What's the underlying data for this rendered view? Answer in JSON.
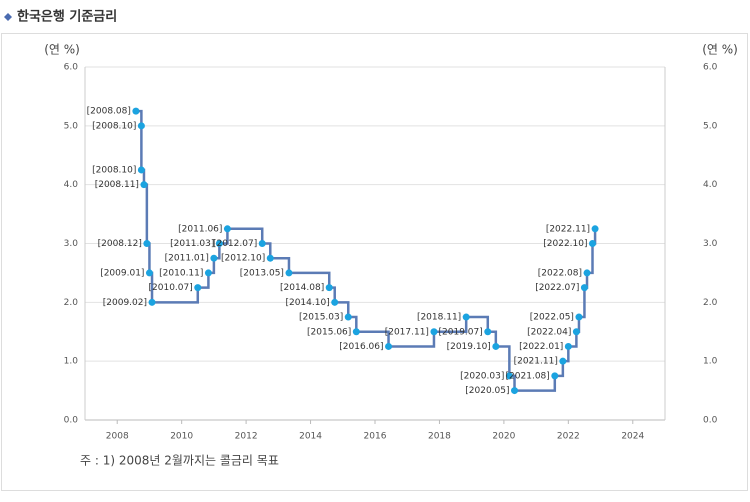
{
  "chart_data": {
    "type": "line",
    "step": "after",
    "title": "한국은행 기준금리",
    "y_label": "(연 %)",
    "y2_label": "(연 %)",
    "note": "주 : 1) 2008년 2월까지는 콜금리 목표",
    "xlim": [
      2007,
      2025
    ],
    "xticks": [
      2008,
      2010,
      2012,
      2014,
      2016,
      2018,
      2020,
      2022,
      2024
    ],
    "ylim": [
      0,
      6
    ],
    "yticks": [
      {
        "value": 0,
        "label": "0.0"
      },
      {
        "value": 1,
        "label": "1.0"
      },
      {
        "value": 2,
        "label": "2.0"
      },
      {
        "value": 3,
        "label": "3.0"
      },
      {
        "value": 4,
        "label": "4.0"
      },
      {
        "value": 5,
        "label": "5.0"
      },
      {
        "value": 6,
        "label": "6.0"
      }
    ],
    "y2lim": [
      0,
      6
    ],
    "y2ticks": [
      {
        "value": 0,
        "label": "0.0"
      },
      {
        "value": 1,
        "label": "1.0"
      },
      {
        "value": 2,
        "label": "2.0"
      },
      {
        "value": 3,
        "label": "3.0"
      },
      {
        "value": 4,
        "label": "4.0"
      },
      {
        "value": 5,
        "label": "5.0"
      },
      {
        "value": 6,
        "label": "6.0"
      }
    ],
    "grid": true,
    "color": "#5b7bb5",
    "marker_color": "#1ba3e0",
    "x": [
      2008.58,
      2008.75,
      2008.75,
      2008.83,
      2008.92,
      2009.0,
      2009.08,
      2010.5,
      2010.83,
      2011.0,
      2011.17,
      2011.42,
      2012.5,
      2012.75,
      2013.33,
      2014.58,
      2014.75,
      2015.17,
      2015.42,
      2016.42,
      2017.83,
      2018.83,
      2019.5,
      2019.75,
      2020.17,
      2020.33,
      2021.58,
      2021.83,
      2022.0,
      2022.25,
      2022.33,
      2022.5,
      2022.58,
      2022.75,
      2022.83
    ],
    "values": [
      5.25,
      5.0,
      4.25,
      4.0,
      3.0,
      2.5,
      2.0,
      2.25,
      2.5,
      2.75,
      3.0,
      3.25,
      3.0,
      2.75,
      2.5,
      2.25,
      2.0,
      1.75,
      1.5,
      1.25,
      1.5,
      1.75,
      1.5,
      1.25,
      0.75,
      0.5,
      0.75,
      1.0,
      1.25,
      1.5,
      1.75,
      2.25,
      2.5,
      3.0,
      3.25
    ],
    "point_labels": [
      "[2008.08]",
      "[2008.10]",
      "[2008.10]",
      "[2008.11]",
      "[2008.12]",
      "[2009.01]",
      "[2009.02]",
      "[2010.07]",
      "[2010.11]",
      "[2011.01]",
      "[2011.03]",
      "[2011.06]",
      "[2012.07]",
      "[2012.10]",
      "[2013.05]",
      "[2014.08]",
      "[2014.10]",
      "[2015.03]",
      "[2015.06]",
      "[2016.06]",
      "[2017.11]",
      "[2018.11]",
      "[2019.07]",
      "[2019.10]",
      "[2020.03]",
      "[2020.05]",
      "[2021.08]",
      "[2021.11]",
      "[2022.01]",
      "[2022.04]",
      "[2022.05]",
      "[2022.07]",
      "[2022.08]",
      "[2022.10]",
      "[2022.11]"
    ]
  }
}
